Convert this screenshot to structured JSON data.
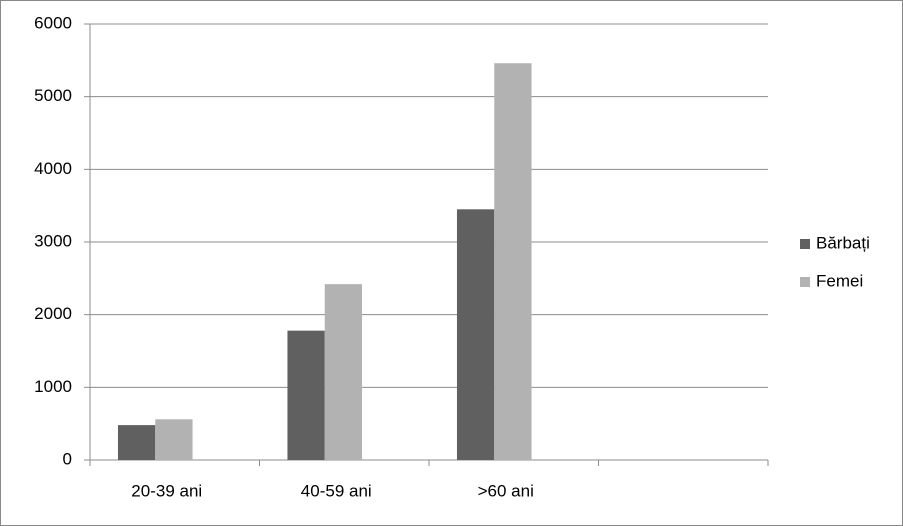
{
  "chart_data": {
    "type": "bar",
    "categories": [
      "20-39 ani",
      "40-59 ani",
      ">60 ani",
      null
    ],
    "series": [
      {
        "name": "Bărbați",
        "color": "#606060",
        "values": [
          480,
          1780,
          3450,
          null
        ]
      },
      {
        "name": "Femei",
        "color": "#b2b2b2",
        "values": [
          560,
          2420,
          5460,
          null
        ]
      }
    ],
    "ylim": [
      0,
      6000
    ],
    "yticks": [
      0,
      1000,
      2000,
      3000,
      4000,
      5000,
      6000
    ],
    "grid": true,
    "legend": "right"
  }
}
